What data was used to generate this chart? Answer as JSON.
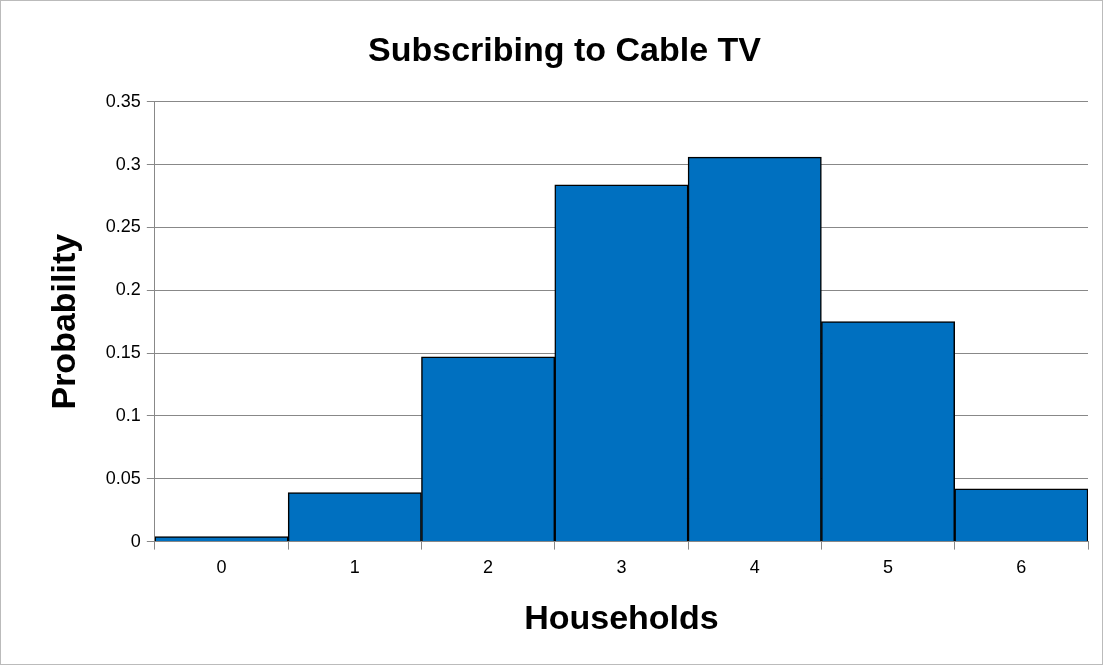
{
  "chart_data": {
    "type": "bar",
    "title": "Subscribing to Cable TV",
    "xlabel": "Households",
    "ylabel": "Probability",
    "categories": [
      "0",
      "1",
      "2",
      "3",
      "4",
      "5",
      "6"
    ],
    "values": [
      0.004,
      0.039,
      0.147,
      0.284,
      0.306,
      0.175,
      0.042
    ],
    "color": "#0070c0",
    "ylim": [
      0,
      0.35
    ],
    "yticks": [
      0,
      0.05,
      0.1,
      0.15,
      0.2,
      0.25,
      0.3,
      0.35
    ],
    "grid": "y",
    "legend": false
  }
}
